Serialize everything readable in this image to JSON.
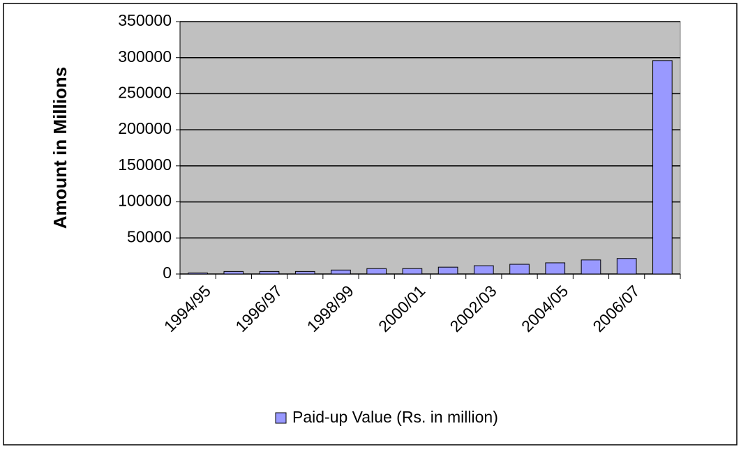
{
  "chart_data": {
    "type": "bar",
    "categories": [
      "1994/95",
      null,
      "1996/97",
      null,
      "1998/99",
      null,
      "2000/01",
      null,
      "2002/03",
      null,
      "2004/05",
      null,
      "2006/07",
      null
    ],
    "series": [
      {
        "name": "Paid-up Value (Rs. in million)",
        "color": "#9999ff",
        "values": [
          1500,
          3500,
          3500,
          3500,
          5500,
          7500,
          7500,
          9500,
          11500,
          13500,
          15500,
          19500,
          21500,
          296000
        ]
      }
    ],
    "y_label": "Amount in Millions",
    "ylim": [
      0,
      350000
    ],
    "yticks": [
      0,
      50000,
      100000,
      150000,
      200000,
      250000,
      300000,
      350000
    ],
    "grid": true,
    "legend": "bottom"
  }
}
